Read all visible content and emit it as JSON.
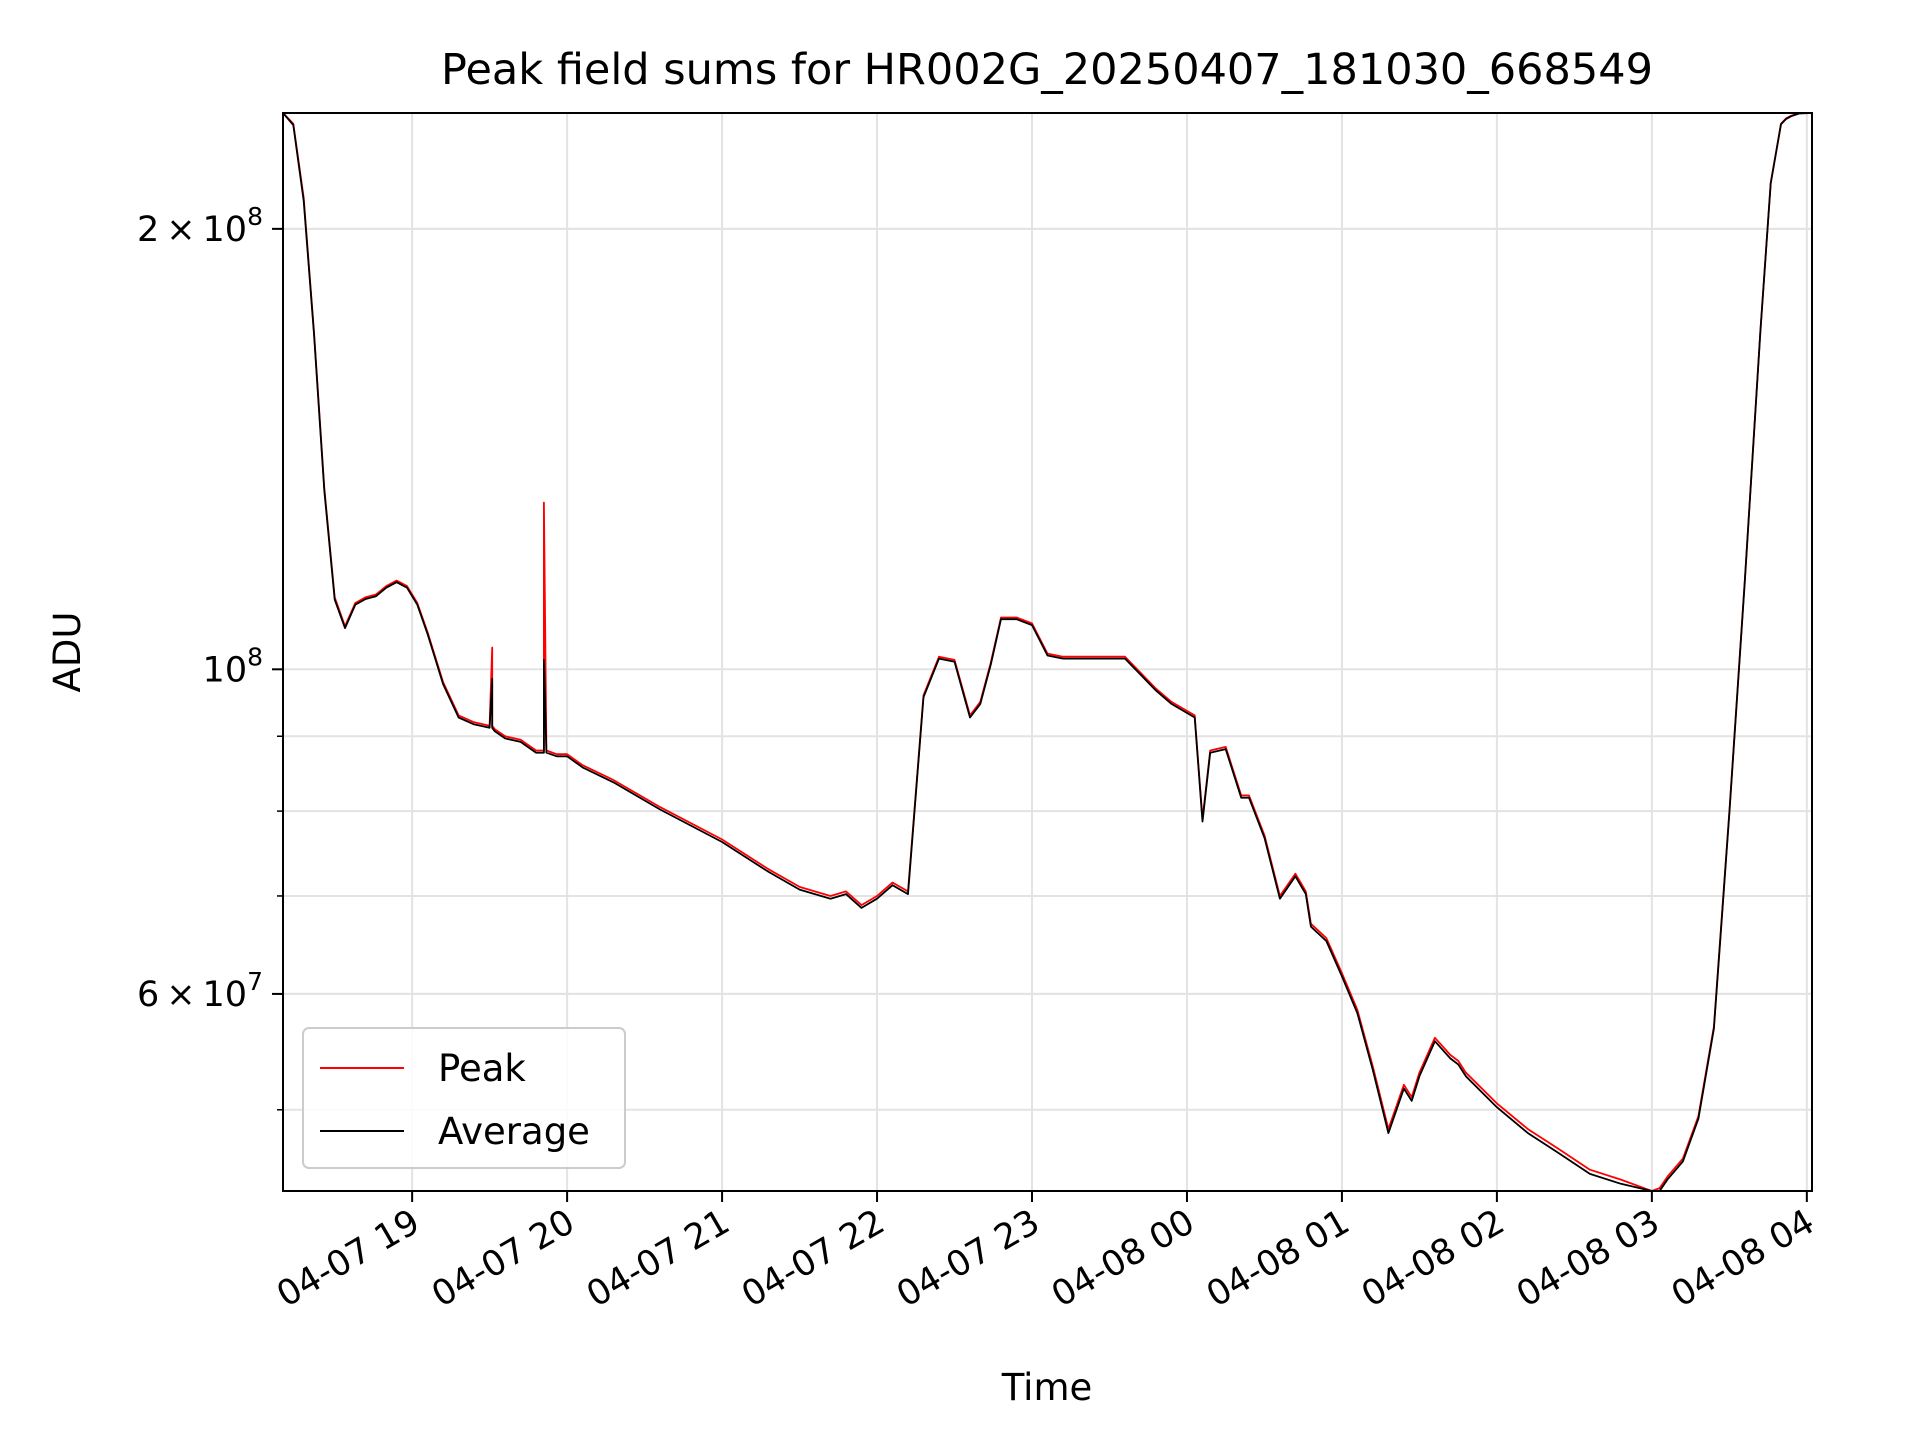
{
  "chart_data": {
    "type": "line",
    "title": "Peak field sums for HR002G_20250407_181030_668549",
    "xlabel": "Time",
    "ylabel": "ADU",
    "y_scale": "log",
    "ylim": [
      44000000,
      240000000
    ],
    "xlim": [
      "2025-04-07 18:10",
      "2025-04-08 04:02"
    ],
    "grid": true,
    "legend_position": "lower-left",
    "x_ticks": [
      {
        "t": "2025-04-07 19:00",
        "label": "04-07 19"
      },
      {
        "t": "2025-04-07 20:00",
        "label": "04-07 20"
      },
      {
        "t": "2025-04-07 21:00",
        "label": "04-07 21"
      },
      {
        "t": "2025-04-07 22:00",
        "label": "04-07 22"
      },
      {
        "t": "2025-04-07 23:00",
        "label": "04-07 23"
      },
      {
        "t": "2025-04-08 00:00",
        "label": "04-08 00"
      },
      {
        "t": "2025-04-08 01:00",
        "label": "04-08 01"
      },
      {
        "t": "2025-04-08 02:00",
        "label": "04-08 02"
      },
      {
        "t": "2025-04-08 03:00",
        "label": "04-08 03"
      },
      {
        "t": "2025-04-08 04:00",
        "label": "04-08 04"
      }
    ],
    "y_major_ticks": [
      {
        "value": 100000000,
        "base": "10",
        "exp": "8"
      },
      {
        "value": 200000000,
        "mant": "2",
        "base": "10",
        "exp": "8"
      },
      {
        "value": 60000000,
        "mant": "6",
        "base": "10",
        "exp": "7"
      }
    ],
    "y_minor_ticks": [
      50000000,
      60000000,
      70000000,
      80000000,
      90000000,
      200000000
    ],
    "series": [
      {
        "name": "Peak",
        "color": "#ff0000",
        "x": [
          "2025-04-07 18:10",
          "2025-04-07 18:14",
          "2025-04-07 18:18",
          "2025-04-07 18:22",
          "2025-04-07 18:26",
          "2025-04-07 18:30",
          "2025-04-07 18:34",
          "2025-04-07 18:38",
          "2025-04-07 18:42",
          "2025-04-07 18:46",
          "2025-04-07 18:50",
          "2025-04-07 18:54",
          "2025-04-07 18:58",
          "2025-04-07 19:02",
          "2025-04-07 19:06",
          "2025-04-07 19:12",
          "2025-04-07 19:18",
          "2025-04-07 19:24",
          "2025-04-07 19:30",
          "2025-04-07 19:31",
          "2025-04-07 19:31",
          "2025-04-07 19:32",
          "2025-04-07 19:36",
          "2025-04-07 19:42",
          "2025-04-07 19:48",
          "2025-04-07 19:51",
          "2025-04-07 19:51",
          "2025-04-07 19:52",
          "2025-04-07 19:56",
          "2025-04-07 20:00",
          "2025-04-07 20:06",
          "2025-04-07 20:18",
          "2025-04-07 20:36",
          "2025-04-07 21:00",
          "2025-04-07 21:18",
          "2025-04-07 21:30",
          "2025-04-07 21:42",
          "2025-04-07 21:48",
          "2025-04-07 21:54",
          "2025-04-07 22:00",
          "2025-04-07 22:06",
          "2025-04-07 22:12",
          "2025-04-07 22:18",
          "2025-04-07 22:24",
          "2025-04-07 22:30",
          "2025-04-07 22:36",
          "2025-04-07 22:40",
          "2025-04-07 22:44",
          "2025-04-07 22:48",
          "2025-04-07 22:54",
          "2025-04-07 23:00",
          "2025-04-07 23:06",
          "2025-04-07 23:12",
          "2025-04-07 23:24",
          "2025-04-07 23:36",
          "2025-04-07 23:48",
          "2025-04-07 23:54",
          "2025-04-08 00:03",
          "2025-04-08 00:06",
          "2025-04-08 00:09",
          "2025-04-08 00:15",
          "2025-04-08 00:21",
          "2025-04-08 00:24",
          "2025-04-08 00:30",
          "2025-04-08 00:36",
          "2025-04-08 00:42",
          "2025-04-08 00:46",
          "2025-04-08 00:48",
          "2025-04-08 00:54",
          "2025-04-08 01:00",
          "2025-04-08 01:06",
          "2025-04-08 01:12",
          "2025-04-08 01:18",
          "2025-04-08 01:24",
          "2025-04-08 01:27",
          "2025-04-08 01:30",
          "2025-04-08 01:36",
          "2025-04-08 01:42",
          "2025-04-08 01:45",
          "2025-04-08 01:48",
          "2025-04-08 02:00",
          "2025-04-08 02:12",
          "2025-04-08 02:24",
          "2025-04-08 02:36",
          "2025-04-08 02:48",
          "2025-04-08 03:00",
          "2025-04-08 03:03",
          "2025-04-08 03:06",
          "2025-04-08 03:12",
          "2025-04-08 03:18",
          "2025-04-08 03:24",
          "2025-04-08 03:30",
          "2025-04-08 03:36",
          "2025-04-08 03:42",
          "2025-04-08 03:46",
          "2025-04-08 03:50",
          "2025-04-08 03:52",
          "2025-04-08 03:54",
          "2025-04-08 03:57",
          "2025-04-08 04:02"
        ],
        "y": [
          240000000,
          236000000,
          210000000,
          170000000,
          133000000,
          112000000,
          107000000,
          111000000,
          112000000,
          112500000,
          114000000,
          115000000,
          114000000,
          111000000,
          106000000,
          98000000,
          93000000,
          92000000,
          91500000,
          103500000,
          91500000,
          91000000,
          90000000,
          89500000,
          88000000,
          88000000,
          130000000,
          88000000,
          87500000,
          87500000,
          86000000,
          84000000,
          80500000,
          76500000,
          73000000,
          71000000,
          70000000,
          70500000,
          69000000,
          70000000,
          71500000,
          70500000,
          96000000,
          102000000,
          101500000,
          93000000,
          95000000,
          101000000,
          108500000,
          108500000,
          107500000,
          102500000,
          102000000,
          102000000,
          102000000,
          97000000,
          95000000,
          93000000,
          79000000,
          88000000,
          88500000,
          82000000,
          82000000,
          77000000,
          70000000,
          72500000,
          70500000,
          67000000,
          65500000,
          62000000,
          58500000,
          53500000,
          48500000,
          52000000,
          51000000,
          53000000,
          56000000,
          54500000,
          54000000,
          53000000,
          50500000,
          48500000,
          47000000,
          45500000,
          44800000,
          43800000,
          44200000,
          45000000,
          46300000,
          49500000,
          57000000,
          80000000,
          115000000,
          170000000,
          215000000,
          236000000,
          238000000,
          239000000,
          240000000,
          240000000
        ]
      },
      {
        "name": "Average",
        "color": "#000000",
        "x": [
          "2025-04-07 18:10",
          "2025-04-07 18:14",
          "2025-04-07 18:18",
          "2025-04-07 18:22",
          "2025-04-07 18:26",
          "2025-04-07 18:30",
          "2025-04-07 18:34",
          "2025-04-07 18:38",
          "2025-04-07 18:42",
          "2025-04-07 18:46",
          "2025-04-07 18:50",
          "2025-04-07 18:54",
          "2025-04-07 18:58",
          "2025-04-07 19:02",
          "2025-04-07 19:06",
          "2025-04-07 19:12",
          "2025-04-07 19:18",
          "2025-04-07 19:24",
          "2025-04-07 19:30",
          "2025-04-07 19:31",
          "2025-04-07 19:31",
          "2025-04-07 19:32",
          "2025-04-07 19:36",
          "2025-04-07 19:42",
          "2025-04-07 19:48",
          "2025-04-07 19:51",
          "2025-04-07 19:51",
          "2025-04-07 19:52",
          "2025-04-07 19:56",
          "2025-04-07 20:00",
          "2025-04-07 20:06",
          "2025-04-07 20:18",
          "2025-04-07 20:36",
          "2025-04-07 21:00",
          "2025-04-07 21:18",
          "2025-04-07 21:30",
          "2025-04-07 21:42",
          "2025-04-07 21:48",
          "2025-04-07 21:54",
          "2025-04-07 22:00",
          "2025-04-07 22:06",
          "2025-04-07 22:12",
          "2025-04-07 22:18",
          "2025-04-07 22:24",
          "2025-04-07 22:30",
          "2025-04-07 22:36",
          "2025-04-07 22:40",
          "2025-04-07 22:44",
          "2025-04-07 22:48",
          "2025-04-07 22:54",
          "2025-04-07 23:00",
          "2025-04-07 23:06",
          "2025-04-07 23:12",
          "2025-04-07 23:24",
          "2025-04-07 23:36",
          "2025-04-07 23:48",
          "2025-04-07 23:54",
          "2025-04-08 00:03",
          "2025-04-08 00:06",
          "2025-04-08 00:09",
          "2025-04-08 00:15",
          "2025-04-08 00:21",
          "2025-04-08 00:24",
          "2025-04-08 00:30",
          "2025-04-08 00:36",
          "2025-04-08 00:42",
          "2025-04-08 00:46",
          "2025-04-08 00:48",
          "2025-04-08 00:54",
          "2025-04-08 01:00",
          "2025-04-08 01:06",
          "2025-04-08 01:12",
          "2025-04-08 01:18",
          "2025-04-08 01:24",
          "2025-04-08 01:27",
          "2025-04-08 01:30",
          "2025-04-08 01:36",
          "2025-04-08 01:42",
          "2025-04-08 01:45",
          "2025-04-08 01:48",
          "2025-04-08 02:00",
          "2025-04-08 02:12",
          "2025-04-08 02:24",
          "2025-04-08 02:36",
          "2025-04-08 02:48",
          "2025-04-08 03:00",
          "2025-04-08 03:03",
          "2025-04-08 03:06",
          "2025-04-08 03:12",
          "2025-04-08 03:18",
          "2025-04-08 03:24",
          "2025-04-08 03:30",
          "2025-04-08 03:36",
          "2025-04-08 03:42",
          "2025-04-08 03:46",
          "2025-04-08 03:50",
          "2025-04-08 03:52",
          "2025-04-08 03:54",
          "2025-04-08 03:57",
          "2025-04-08 04:02"
        ],
        "y": [
          240000000,
          235500000,
          209000000,
          169500000,
          132500000,
          111600000,
          106700000,
          110700000,
          111700000,
          112200000,
          113700000,
          114700000,
          113700000,
          110700000,
          105700000,
          97700000,
          92700000,
          91700000,
          91200000,
          98500000,
          91200000,
          90700000,
          89700000,
          89200000,
          87700000,
          87700000,
          101500000,
          87700000,
          87200000,
          87200000,
          85700000,
          83700000,
          80200000,
          76200000,
          72700000,
          70700000,
          69700000,
          70200000,
          68700000,
          69700000,
          71200000,
          70200000,
          95700000,
          101700000,
          101200000,
          92700000,
          94700000,
          100700000,
          108200000,
          108200000,
          107200000,
          102200000,
          101700000,
          101700000,
          101700000,
          96700000,
          94700000,
          92700000,
          78700000,
          87700000,
          88200000,
          81700000,
          81700000,
          76700000,
          69700000,
          72200000,
          70200000,
          66700000,
          65200000,
          61700000,
          58200000,
          53200000,
          48200000,
          51700000,
          50700000,
          52700000,
          55700000,
          54200000,
          53700000,
          52700000,
          50200000,
          48200000,
          46700000,
          45200000,
          44500000,
          43600000,
          44000000,
          44800000,
          46100000,
          49300000,
          56800000,
          79800000,
          114800000,
          169800000,
          214800000,
          235800000,
          237800000,
          238800000,
          239800000,
          240000000
        ]
      }
    ]
  }
}
